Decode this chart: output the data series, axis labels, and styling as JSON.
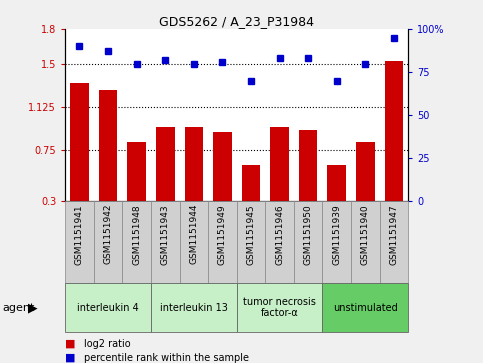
{
  "title": "GDS5262 / A_23_P31984",
  "samples": [
    "GSM1151941",
    "GSM1151942",
    "GSM1151948",
    "GSM1151943",
    "GSM1151944",
    "GSM1151949",
    "GSM1151945",
    "GSM1151946",
    "GSM1151950",
    "GSM1151939",
    "GSM1151940",
    "GSM1151947"
  ],
  "log2_ratio": [
    1.33,
    1.27,
    0.82,
    0.95,
    0.95,
    0.9,
    0.62,
    0.95,
    0.92,
    0.62,
    0.82,
    1.52
  ],
  "percentile": [
    90,
    87,
    80,
    82,
    80,
    81,
    70,
    83,
    83,
    70,
    80,
    95
  ],
  "bar_color": "#cc0000",
  "dot_color": "#0000cc",
  "ylim_left": [
    0.3,
    1.8
  ],
  "ylim_right": [
    0,
    100
  ],
  "yticks_left": [
    0.3,
    0.75,
    1.125,
    1.5,
    1.8
  ],
  "ytick_labels_left": [
    "0.3",
    "0.75",
    "1.125",
    "1.5",
    "1.8"
  ],
  "yticks_right": [
    0,
    25,
    50,
    75,
    100
  ],
  "ytick_labels_right": [
    "0",
    "25",
    "50",
    "75",
    "100%"
  ],
  "hlines": [
    0.75,
    1.125,
    1.5
  ],
  "groups": [
    {
      "label": "interleukin 4",
      "start": 0,
      "end": 3,
      "color": "#c8f0c8"
    },
    {
      "label": "interleukin 13",
      "start": 3,
      "end": 6,
      "color": "#c8f0c8"
    },
    {
      "label": "tumor necrosis\nfactor-α",
      "start": 6,
      "end": 9,
      "color": "#c8f0c8"
    },
    {
      "label": "unstimulated",
      "start": 9,
      "end": 12,
      "color": "#66cc66"
    }
  ],
  "agent_label": "agent",
  "bar_width": 0.65,
  "background_color": "#f0f0f0",
  "plot_bg": "#ffffff",
  "sample_box_color": "#d0d0d0",
  "legend_bar_label": "log2 ratio",
  "legend_dot_label": "percentile rank within the sample"
}
